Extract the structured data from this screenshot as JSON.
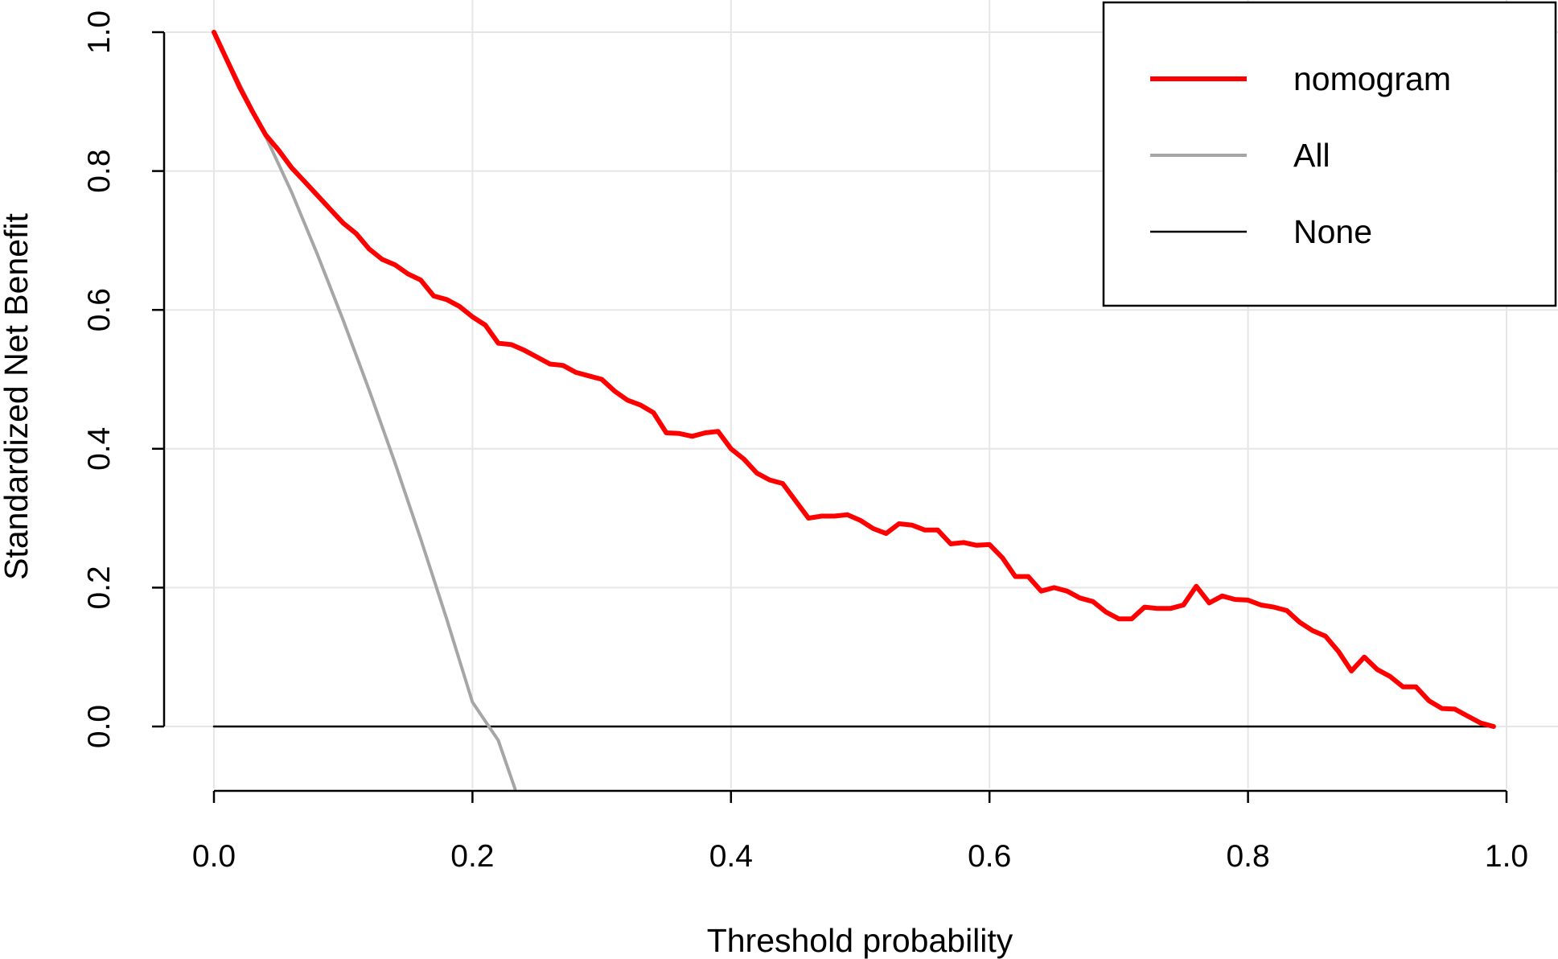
{
  "chart_data": {
    "type": "line",
    "title": "",
    "xlabel": "Threshold probability",
    "ylabel": "Standardized Net Benefit",
    "xlim": [
      0,
      1
    ],
    "ylim": [
      -0.09,
      1.0
    ],
    "x_ticks": [
      "0.0",
      "0.2",
      "0.4",
      "0.6",
      "0.8",
      "1.0"
    ],
    "y_ticks": [
      "0.0",
      "0.2",
      "0.4",
      "0.6",
      "0.8",
      "1.0"
    ],
    "grid": true,
    "legend_position": "top-right",
    "series": [
      {
        "name": "nomogram",
        "color": "#ff0000",
        "x": [
          0.0,
          0.01,
          0.02,
          0.03,
          0.04,
          0.05,
          0.06,
          0.07,
          0.08,
          0.09,
          0.1,
          0.11,
          0.12,
          0.13,
          0.14,
          0.15,
          0.16,
          0.17,
          0.18,
          0.19,
          0.2,
          0.21,
          0.22,
          0.23,
          0.24,
          0.25,
          0.26,
          0.27,
          0.28,
          0.29,
          0.3,
          0.31,
          0.32,
          0.33,
          0.34,
          0.35,
          0.36,
          0.37,
          0.38,
          0.39,
          0.4,
          0.41,
          0.42,
          0.43,
          0.44,
          0.45,
          0.46,
          0.47,
          0.48,
          0.49,
          0.5,
          0.51,
          0.52,
          0.53,
          0.54,
          0.55,
          0.56,
          0.57,
          0.58,
          0.59,
          0.6,
          0.61,
          0.62,
          0.63,
          0.64,
          0.65,
          0.66,
          0.67,
          0.68,
          0.69,
          0.7,
          0.71,
          0.72,
          0.73,
          0.74,
          0.75,
          0.76,
          0.77,
          0.78,
          0.79,
          0.8,
          0.81,
          0.82,
          0.83,
          0.84,
          0.85,
          0.86,
          0.87,
          0.88,
          0.89,
          0.9,
          0.91,
          0.92,
          0.93,
          0.94,
          0.95,
          0.96,
          0.97,
          0.98,
          0.99
        ],
        "y": [
          1.0,
          0.96,
          0.92,
          0.885,
          0.852,
          0.83,
          0.805,
          0.785,
          0.765,
          0.745,
          0.725,
          0.71,
          0.688,
          0.673,
          0.665,
          0.652,
          0.643,
          0.62,
          0.615,
          0.605,
          0.59,
          0.578,
          0.552,
          0.55,
          0.542,
          0.532,
          0.522,
          0.52,
          0.51,
          0.505,
          0.5,
          0.483,
          0.47,
          0.463,
          0.452,
          0.423,
          0.422,
          0.418,
          0.423,
          0.425,
          0.4,
          0.385,
          0.365,
          0.355,
          0.35,
          0.325,
          0.3,
          0.303,
          0.303,
          0.305,
          0.297,
          0.285,
          0.278,
          0.292,
          0.29,
          0.283,
          0.283,
          0.263,
          0.265,
          0.261,
          0.262,
          0.243,
          0.216,
          0.216,
          0.195,
          0.2,
          0.195,
          0.185,
          0.18,
          0.165,
          0.155,
          0.155,
          0.172,
          0.17,
          0.17,
          0.175,
          0.202,
          0.178,
          0.188,
          0.183,
          0.182,
          0.175,
          0.172,
          0.167,
          0.15,
          0.138,
          0.13,
          0.108,
          0.08,
          0.1,
          0.082,
          0.072,
          0.057,
          0.057,
          0.037,
          0.026,
          0.025,
          0.015,
          0.005,
          0.0
        ]
      },
      {
        "name": "All",
        "color": "#a6a6a6",
        "x": [
          0.0,
          0.02,
          0.04,
          0.06,
          0.08,
          0.1,
          0.12,
          0.14,
          0.16,
          0.18,
          0.2,
          0.22,
          0.233
        ],
        "y": [
          1.0,
          0.925,
          0.85,
          0.77,
          0.68,
          0.585,
          0.485,
          0.38,
          0.27,
          0.155,
          0.035,
          -0.02,
          -0.09
        ]
      },
      {
        "name": "None",
        "color": "#000000",
        "x": [
          0.0,
          0.99
        ],
        "y": [
          0.0,
          0.0
        ]
      }
    ]
  }
}
